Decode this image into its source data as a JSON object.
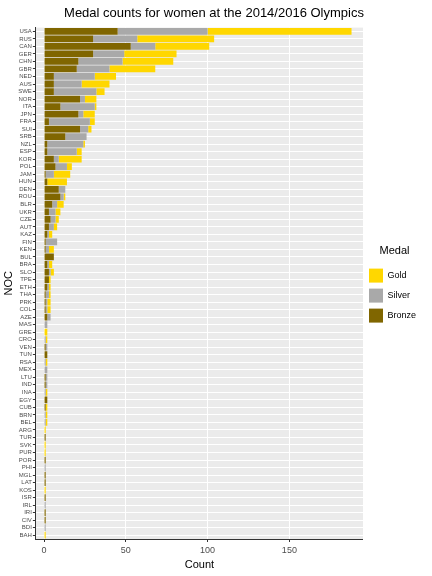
{
  "chart_data": {
    "type": "bar",
    "title": "Medal counts for women at the 2014/2016 Olympics",
    "x_label": "Count",
    "y_label": "NOC",
    "legend_title": "Medal",
    "orientation": "horizontal",
    "stacked": true,
    "grid": true,
    "legend": "right",
    "xlim": [
      -5,
      195
    ],
    "xticks": [
      0,
      50,
      100,
      150
    ],
    "categories": [
      "USA",
      "RUS",
      "CAN",
      "GER",
      "CHN",
      "GBR",
      "NED",
      "AUS",
      "SWE",
      "NOR",
      "ITA",
      "JPN",
      "FRA",
      "SUI",
      "SRB",
      "NZL",
      "ESP",
      "KOR",
      "POL",
      "JAM",
      "HUN",
      "DEN",
      "ROU",
      "BLR",
      "UKR",
      "CZE",
      "AUT",
      "KAZ",
      "FIN",
      "KEN",
      "BUL",
      "BRA",
      "SLO",
      "TPE",
      "ETH",
      "THA",
      "PRK",
      "COL",
      "AZE",
      "MAS",
      "GRE",
      "CRO",
      "VEN",
      "TUN",
      "RSA",
      "MEX",
      "LTU",
      "IND",
      "INA",
      "EGY",
      "CUB",
      "BRN",
      "BEL",
      "ARG",
      "TUR",
      "SVK",
      "PUR",
      "POR",
      "PHI",
      "MGL",
      "LAT",
      "KOS",
      "ISR",
      "IRL",
      "IRI",
      "CIV",
      "BDI",
      "BAH"
    ],
    "series": [
      {
        "name": "Bronze",
        "color": "#806600",
        "values": [
          45,
          30,
          53,
          30,
          21,
          20,
          6,
          6,
          6,
          22,
          10,
          21,
          3,
          22,
          13,
          2,
          2,
          6,
          7,
          1,
          2,
          9,
          10,
          5,
          3,
          4,
          3,
          2,
          1,
          1,
          6,
          2,
          3,
          3,
          2,
          1,
          1,
          1,
          2,
          0,
          0,
          0,
          1,
          2,
          0,
          0,
          1,
          1,
          0,
          2,
          1,
          0,
          0,
          0,
          1,
          0,
          0,
          1,
          0,
          1,
          1,
          0,
          1,
          0,
          1,
          1,
          0,
          0
        ]
      },
      {
        "name": "Silver",
        "color": "#A9A9A9",
        "values": [
          55,
          27,
          15,
          19,
          27,
          20,
          25,
          17,
          26,
          3,
          21,
          3,
          25,
          5,
          13,
          22,
          18,
          3,
          7,
          5,
          0,
          4,
          2,
          3,
          4,
          3,
          3,
          1,
          7,
          2,
          0,
          1,
          1,
          0,
          1,
          2,
          1,
          1,
          2,
          2,
          0,
          1,
          1,
          0,
          1,
          2,
          1,
          1,
          1,
          0,
          0,
          1,
          1,
          0,
          0,
          0,
          0,
          0,
          1,
          0,
          0,
          0,
          0,
          1,
          0,
          0,
          1,
          0
        ]
      },
      {
        "name": "Gold",
        "color": "#FFD700",
        "values": [
          88,
          47,
          33,
          32,
          31,
          28,
          13,
          17,
          5,
          7,
          1,
          7,
          3,
          2,
          0,
          1,
          3,
          14,
          3,
          10,
          12,
          0,
          1,
          4,
          3,
          2,
          2,
          2,
          0,
          3,
          0,
          2,
          2,
          1,
          1,
          1,
          2,
          2,
          0,
          0,
          2,
          1,
          0,
          0,
          1,
          0,
          0,
          0,
          1,
          0,
          1,
          1,
          1,
          1,
          0,
          1,
          1,
          0,
          0,
          0,
          0,
          1,
          0,
          0,
          0,
          0,
          0,
          1
        ]
      }
    ]
  }
}
